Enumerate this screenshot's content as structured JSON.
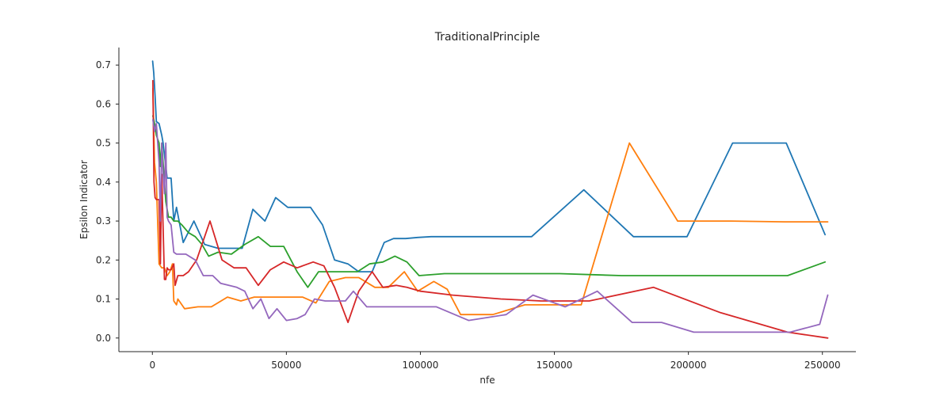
{
  "chart_data": {
    "type": "line",
    "title": "TraditionalPrinciple",
    "xlabel": "nfe",
    "ylabel": "Epsilon Indicator",
    "xlim": [
      -12500,
      262500
    ],
    "ylim": [
      -0.035,
      0.745
    ],
    "xticks": [
      0,
      50000,
      100000,
      150000,
      200000,
      250000
    ],
    "xtick_labels": [
      "0",
      "50000",
      "100000",
      "150000",
      "200000",
      "250000"
    ],
    "yticks": [
      0.0,
      0.1,
      0.2,
      0.3,
      0.4,
      0.5,
      0.6,
      0.7
    ],
    "ytick_labels": [
      "0.0",
      "0.1",
      "0.2",
      "0.3",
      "0.4",
      "0.5",
      "0.6",
      "0.7"
    ],
    "grid": false,
    "legend": "none",
    "series": [
      {
        "color": "#1f77b4",
        "x": [
          100,
          500,
          1000,
          1500,
          2500,
          3500,
          4000,
          5500,
          7000,
          8000,
          9000,
          11500,
          15500,
          19500,
          24500,
          33500,
          37500,
          42000,
          46000,
          50500,
          55000,
          59000,
          63500,
          68000,
          73000,
          77000,
          82000,
          86500,
          90000,
          94500,
          99000,
          104000,
          122000,
          141500,
          161000,
          179500,
          199500,
          216500,
          236500,
          251000
        ],
        "y": [
          0.71,
          0.68,
          0.62,
          0.555,
          0.55,
          0.52,
          0.5,
          0.41,
          0.41,
          0.3,
          0.335,
          0.245,
          0.3,
          0.24,
          0.23,
          0.23,
          0.33,
          0.3,
          0.36,
          0.335,
          0.335,
          0.335,
          0.29,
          0.2,
          0.19,
          0.17,
          0.17,
          0.245,
          0.255,
          0.255,
          0.258,
          0.26,
          0.26,
          0.26,
          0.38,
          0.26,
          0.26,
          0.5,
          0.5,
          0.265
        ]
      },
      {
        "color": "#ff7f0e",
        "x": [
          200,
          800,
          1500,
          2500,
          3500,
          4500,
          5500,
          6500,
          7500,
          8000,
          9000,
          9500,
          12000,
          17000,
          22000,
          28000,
          33000,
          38000,
          44000,
          51000,
          56000,
          61000,
          66000,
          72000,
          77000,
          83000,
          88000,
          94000,
          99000,
          105000,
          110000,
          115000,
          127000,
          139000,
          152000,
          160000,
          178000,
          196000,
          216000,
          236000,
          252000
        ],
        "y": [
          0.64,
          0.45,
          0.4,
          0.19,
          0.18,
          0.18,
          0.16,
          0.17,
          0.19,
          0.095,
          0.085,
          0.1,
          0.075,
          0.08,
          0.08,
          0.105,
          0.095,
          0.105,
          0.105,
          0.105,
          0.105,
          0.09,
          0.145,
          0.155,
          0.155,
          0.13,
          0.13,
          0.17,
          0.12,
          0.145,
          0.125,
          0.06,
          0.06,
          0.085,
          0.085,
          0.085,
          0.5,
          0.3,
          0.3,
          0.298,
          0.298
        ]
      },
      {
        "color": "#2ca02c",
        "x": [
          200,
          800,
          1500,
          2500,
          3000,
          3500,
          4000,
          5000,
          6000,
          7000,
          8000,
          9500,
          11000,
          13500,
          16000,
          18500,
          21000,
          24500,
          29500,
          34500,
          39500,
          44000,
          49000,
          54000,
          58000,
          62000,
          67000,
          72000,
          76500,
          81000,
          86000,
          90500,
          95000,
          99500,
          109000,
          128000,
          152000,
          175000,
          201000,
          226000,
          237000,
          251000
        ],
        "y": [
          0.57,
          0.55,
          0.52,
          0.5,
          0.44,
          0.5,
          0.45,
          0.35,
          0.31,
          0.31,
          0.3,
          0.3,
          0.29,
          0.27,
          0.26,
          0.24,
          0.21,
          0.22,
          0.215,
          0.24,
          0.26,
          0.235,
          0.235,
          0.17,
          0.13,
          0.17,
          0.17,
          0.17,
          0.17,
          0.19,
          0.195,
          0.21,
          0.195,
          0.16,
          0.165,
          0.165,
          0.165,
          0.16,
          0.16,
          0.16,
          0.16,
          0.195
        ]
      },
      {
        "color": "#d62728",
        "x": [
          200,
          600,
          1000,
          1500,
          2500,
          3000,
          3500,
          4500,
          5000,
          5500,
          6000,
          7000,
          8000,
          8500,
          9500,
          11500,
          13500,
          16500,
          21500,
          26000,
          30500,
          35000,
          39500,
          44000,
          49000,
          54000,
          60000,
          64000,
          68000,
          73000,
          77000,
          82000,
          86000,
          91000,
          95000,
          100000,
          112000,
          130000,
          145000,
          163000,
          187000,
          212000,
          237000,
          252000
        ],
        "y": [
          0.66,
          0.4,
          0.36,
          0.355,
          0.355,
          0.19,
          0.42,
          0.15,
          0.15,
          0.18,
          0.175,
          0.175,
          0.19,
          0.135,
          0.16,
          0.16,
          0.17,
          0.2,
          0.3,
          0.2,
          0.18,
          0.18,
          0.135,
          0.175,
          0.195,
          0.18,
          0.195,
          0.185,
          0.13,
          0.04,
          0.12,
          0.17,
          0.13,
          0.135,
          0.13,
          0.12,
          0.11,
          0.1,
          0.095,
          0.095,
          0.13,
          0.065,
          0.015,
          0.0
        ]
      },
      {
        "color": "#9467bd",
        "x": [
          200,
          800,
          1500,
          2500,
          3000,
          3500,
          4000,
          4500,
          5000,
          5500,
          6000,
          7000,
          8000,
          9000,
          10500,
          12500,
          16000,
          19000,
          22500,
          25500,
          28500,
          31500,
          34500,
          37500,
          40500,
          43500,
          46500,
          50000,
          54000,
          57000,
          60500,
          64500,
          67500,
          72000,
          75000,
          80000,
          84000,
          89000,
          95000,
          100000,
          106000,
          118000,
          132000,
          142000,
          154000,
          166000,
          179000,
          190000,
          202000,
          214000,
          227000,
          238000,
          249000,
          252000
        ],
        "y": [
          0.56,
          0.53,
          0.55,
          0.45,
          0.3,
          0.5,
          0.42,
          0.37,
          0.5,
          0.31,
          0.3,
          0.29,
          0.22,
          0.215,
          0.215,
          0.215,
          0.2,
          0.16,
          0.16,
          0.14,
          0.135,
          0.13,
          0.12,
          0.075,
          0.1,
          0.05,
          0.075,
          0.045,
          0.05,
          0.06,
          0.1,
          0.095,
          0.095,
          0.095,
          0.12,
          0.08,
          0.08,
          0.08,
          0.08,
          0.08,
          0.08,
          0.045,
          0.06,
          0.11,
          0.08,
          0.12,
          0.04,
          0.04,
          0.015,
          0.015,
          0.015,
          0.015,
          0.035,
          0.11
        ]
      }
    ]
  }
}
